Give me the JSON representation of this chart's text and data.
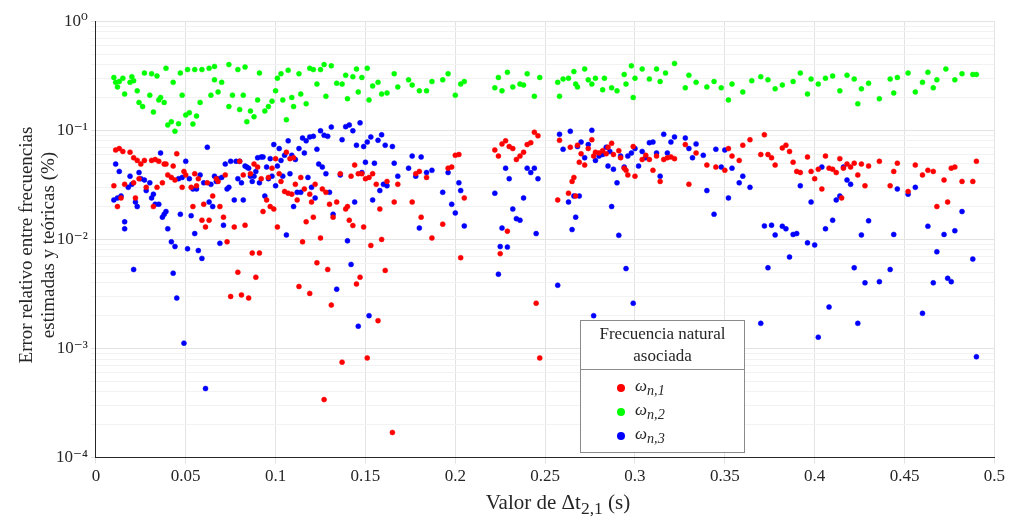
{
  "chart_data": {
    "type": "scatter",
    "xlabel": "Valor de Δt$_{2,1}$ (s)",
    "ylabel": "Error relativo entre frecuencias estimadas y teóricas (%)",
    "legend_title": "Frecuencia natural asociada",
    "legend": "bottom right",
    "grid": true,
    "log": "y",
    "marker": "circle",
    "xlim": [
      0,
      0.5
    ],
    "xticks": [
      0,
      0.05,
      0.1,
      0.15,
      0.2,
      0.25,
      0.3,
      0.35,
      0.4,
      0.45,
      0.5
    ],
    "ylim": [
      0.0001,
      1
    ],
    "yticks": [
      {
        "value": 0.0001,
        "label": "10⁻⁴"
      },
      {
        "value": 0.0002,
        "label": null
      },
      {
        "value": 0.0003,
        "label": null
      },
      {
        "value": 0.0004,
        "label": null
      },
      {
        "value": 0.0005,
        "label": null
      },
      {
        "value": 0.0006,
        "label": null
      },
      {
        "value": 0.0007,
        "label": null
      },
      {
        "value": 0.0008,
        "label": null
      },
      {
        "value": 0.0009,
        "label": null
      },
      {
        "value": 0.001,
        "label": "10⁻³"
      },
      {
        "value": 0.002,
        "label": null
      },
      {
        "value": 0.003,
        "label": null
      },
      {
        "value": 0.004,
        "label": null
      },
      {
        "value": 0.005,
        "label": null
      },
      {
        "value": 0.006,
        "label": null
      },
      {
        "value": 0.007,
        "label": null
      },
      {
        "value": 0.008,
        "label": null
      },
      {
        "value": 0.009,
        "label": null
      },
      {
        "value": 0.01,
        "label": "10⁻²"
      },
      {
        "value": 0.02,
        "label": null
      },
      {
        "value": 0.03,
        "label": null
      },
      {
        "value": 0.04,
        "label": null
      },
      {
        "value": 0.05,
        "label": null
      },
      {
        "value": 0.06,
        "label": null
      },
      {
        "value": 0.07,
        "label": null
      },
      {
        "value": 0.08,
        "label": null
      },
      {
        "value": 0.09,
        "label": null
      },
      {
        "value": 0.1,
        "label": "10⁻¹"
      },
      {
        "value": 0.2,
        "label": null
      },
      {
        "value": 0.3,
        "label": null
      },
      {
        "value": 0.4,
        "label": null
      },
      {
        "value": 0.5,
        "label": null
      },
      {
        "value": 0.6,
        "label": null
      },
      {
        "value": 0.7,
        "label": null
      },
      {
        "value": 0.8,
        "label": null
      },
      {
        "value": 0.9,
        "label": null
      },
      {
        "value": 1,
        "label": "10⁰"
      }
    ],
    "series": [
      {
        "name": "ω$_{n,1}$",
        "color": "#ff0000",
        "x": [
          0.01,
          0.011,
          0.012,
          0.013,
          0.014,
          0.015,
          0.016,
          0.019,
          0.021,
          0.021,
          0.022,
          0.023,
          0.024,
          0.025,
          0.027,
          0.028,
          0.031,
          0.032,
          0.033,
          0.034,
          0.035,
          0.037,
          0.038,
          0.039,
          0.04,
          0.042,
          0.043,
          0.044,
          0.045,
          0.048,
          0.049,
          0.05,
          0.053,
          0.054,
          0.055,
          0.056,
          0.057,
          0.059,
          0.06,
          0.061,
          0.062,
          0.063,
          0.065,
          0.067,
          0.068,
          0.069,
          0.071,
          0.072,
          0.073,
          0.075,
          0.077,
          0.079,
          0.08,
          0.081,
          0.082,
          0.083,
          0.085,
          0.086,
          0.087,
          0.088,
          0.089,
          0.09,
          0.091,
          0.092,
          0.093,
          0.095,
          0.096,
          0.097,
          0.098,
          0.099,
          0.1,
          0.101,
          0.102,
          0.103,
          0.105,
          0.106,
          0.107,
          0.108,
          0.109,
          0.11,
          0.111,
          0.112,
          0.113,
          0.114,
          0.115,
          0.116,
          0.117,
          0.119,
          0.119,
          0.12,
          0.121,
          0.122,
          0.123,
          0.125,
          0.126,
          0.127,
          0.128,
          0.129,
          0.13,
          0.131,
          0.132,
          0.134,
          0.136,
          0.137,
          0.139,
          0.14,
          0.141,
          0.142,
          0.143,
          0.144,
          0.145,
          0.146,
          0.147,
          0.148,
          0.149,
          0.15,
          0.151,
          0.152,
          0.153,
          0.154,
          0.156,
          0.157,
          0.158,
          0.159,
          0.161,
          0.162,
          0.165,
          0.166,
          0.168,
          0.176,
          0.178,
          0.18,
          0.181,
          0.184,
          0.187,
          0.193,
          0.196,
          0.198,
          0.2,
          0.202,
          0.203,
          0.205,
          0.222,
          0.224,
          0.225,
          0.226,
          0.228,
          0.229,
          0.23,
          0.232,
          0.234,
          0.236,
          0.238,
          0.24,
          0.242,
          0.244,
          0.245,
          0.246,
          0.247,
          0.257,
          0.258,
          0.263,
          0.264,
          0.265,
          0.266,
          0.267,
          0.268,
          0.269,
          0.27,
          0.272,
          0.274,
          0.276,
          0.277,
          0.278,
          0.28,
          0.282,
          0.284,
          0.285,
          0.287,
          0.288,
          0.291,
          0.292,
          0.294,
          0.295,
          0.296,
          0.299,
          0.3,
          0.304,
          0.306,
          0.308,
          0.31,
          0.312,
          0.314,
          0.316,
          0.318,
          0.32,
          0.322,
          0.328,
          0.33,
          0.334,
          0.34,
          0.345,
          0.35,
          0.352,
          0.354,
          0.358,
          0.36,
          0.364,
          0.37,
          0.372,
          0.374,
          0.376,
          0.378,
          0.382,
          0.384,
          0.386,
          0.388,
          0.39,
          0.392,
          0.396,
          0.398,
          0.4,
          0.402,
          0.404,
          0.406,
          0.408,
          0.41,
          0.412,
          0.414,
          0.415,
          0.416,
          0.418,
          0.42,
          0.422,
          0.424,
          0.426,
          0.428,
          0.43,
          0.436,
          0.442,
          0.444,
          0.446,
          0.452,
          0.456,
          0.46,
          0.463,
          0.466,
          0.468,
          0.472,
          0.474,
          0.476,
          0.478,
          0.482,
          0.488,
          0.49
        ],
        "values": [
          0.031,
          0.066,
          0.02,
          0.068,
          0.024,
          0.064,
          0.032,
          0.063,
          0.033,
          0.056,
          0.024,
          0.053,
          0.036,
          0.049,
          0.053,
          0.03,
          0.053,
          0.02,
          0.054,
          0.03,
          0.052,
          0.033,
          0.049,
          0.049,
          0.039,
          0.037,
          0.047,
          0.035,
          0.061,
          0.03,
          0.042,
          0.039,
          0.03,
          0.02,
          0.04,
          0.031,
          0.036,
          0.015,
          0.021,
          0.013,
          0.033,
          0.015,
          0.025,
          0.036,
          0.034,
          0.02,
          0.016,
          0.039,
          0.0095,
          0.003,
          0.013,
          0.005,
          0.052,
          0.0031,
          0.039,
          0.0135,
          0.0029,
          0.04,
          0.0075,
          0.049,
          0.0045,
          0.046,
          0.0075,
          0.036,
          0.018,
          0.023,
          0.037,
          0.02,
          0.045,
          0.019,
          0.055,
          0.013,
          0.04,
          0.034,
          0.0275,
          0.063,
          0.0265,
          0.055,
          0.026,
          0.056,
          0.032,
          0.023,
          0.0037,
          0.037,
          0.0095,
          0.029,
          0.0145,
          0.026,
          0.0032,
          0.022,
          0.016,
          0.032,
          0.0061,
          0.0103,
          0.029,
          0.00034,
          0.027,
          0.0053,
          0.021,
          0.0025,
          0.016,
          0.022,
          0.04,
          0.00075,
          0.019,
          0.02,
          0.015,
          0.038,
          0.0134,
          0.048,
          0.0039,
          0.04,
          0.0045,
          0.04,
          0.013,
          0.036,
          0.00082,
          0.037,
          0.0088,
          0.04,
          0.032,
          0.0018,
          0.019,
          0.01,
          0.0052,
          0.034,
          0.00017,
          0.022,
          0.032,
          0.022,
          0.04,
          0.042,
          0.016,
          0.037,
          0.0103,
          0.0138,
          0.045,
          0.046,
          0.059,
          0.06,
          0.0068,
          0.024,
          0.066,
          0.058,
          0.0074,
          0.075,
          0.08,
          0.0119,
          0.071,
          0.068,
          0.054,
          0.058,
          0.063,
          0.074,
          0.077,
          0.096,
          0.0026,
          0.089,
          0.00082,
          0.023,
          0.081,
          0.0265,
          0.07,
          0.034,
          0.037,
          0.025,
          0.073,
          0.051,
          0.061,
          0.048,
          0.068,
          0.082,
          0.058,
          0.063,
          0.062,
          0.065,
          0.061,
          0.07,
          0.076,
          0.06,
          0.065,
          0.056,
          0.045,
          0.043,
          0.039,
          0.071,
          0.038,
          0.054,
          0.059,
          0.054,
          0.043,
          0.058,
          0.034,
          0.054,
          0.056,
          0.057,
          0.055,
          0.074,
          0.032,
          0.062,
          0.048,
          0.046,
          0.043,
          0.068,
          0.058,
          0.053,
          0.073,
          0.082,
          0.06,
          0.091,
          0.06,
          0.056,
          0.048,
          0.069,
          0.073,
          0.064,
          0.051,
          0.042,
          0.041,
          0.057,
          0.042,
          0.036,
          0.044,
          0.029,
          0.058,
          0.045,
          0.044,
          0.041,
          0.055,
          0.024,
          0.045,
          0.049,
          0.046,
          0.05,
          0.039,
          0.049,
          0.031,
          0.047,
          0.052,
          0.031,
          0.042,
          0.05,
          0.0275,
          0.048,
          0.039,
          0.043,
          0.042,
          0.02,
          0.035,
          0.022,
          0.045,
          0.046,
          0.034,
          0.034,
          0.052
        ]
      },
      {
        "name": "ω$_{n,2}$",
        "color": "#00ff00",
        "x": [
          0.01,
          0.011,
          0.012,
          0.013,
          0.015,
          0.016,
          0.019,
          0.02,
          0.021,
          0.023,
          0.024,
          0.026,
          0.027,
          0.03,
          0.032,
          0.031,
          0.034,
          0.035,
          0.036,
          0.038,
          0.039,
          0.04,
          0.042,
          0.044,
          0.043,
          0.046,
          0.047,
          0.048,
          0.05,
          0.052,
          0.054,
          0.056,
          0.051,
          0.055,
          0.058,
          0.059,
          0.063,
          0.066,
          0.066,
          0.064,
          0.068,
          0.07,
          0.074,
          0.074,
          0.076,
          0.079,
          0.08,
          0.082,
          0.083,
          0.084,
          0.086,
          0.088,
          0.09,
          0.091,
          0.094,
          0.096,
          0.098,
          0.1,
          0.101,
          0.103,
          0.104,
          0.106,
          0.107,
          0.109,
          0.11,
          0.113,
          0.114,
          0.117,
          0.119,
          0.121,
          0.123,
          0.125,
          0.127,
          0.128,
          0.131,
          0.134,
          0.137,
          0.139,
          0.14,
          0.143,
          0.145,
          0.146,
          0.148,
          0.151,
          0.152,
          0.154,
          0.157,
          0.159,
          0.162,
          0.166,
          0.168,
          0.174,
          0.176,
          0.18,
          0.184,
          0.187,
          0.193,
          0.196,
          0.2,
          0.203,
          0.205,
          0.222,
          0.224,
          0.226,
          0.229,
          0.232,
          0.236,
          0.238,
          0.24,
          0.244,
          0.247,
          0.257,
          0.258,
          0.26,
          0.263,
          0.266,
          0.267,
          0.268,
          0.272,
          0.274,
          0.276,
          0.278,
          0.282,
          0.283,
          0.287,
          0.29,
          0.294,
          0.295,
          0.298,
          0.299,
          0.3,
          0.304,
          0.308,
          0.312,
          0.314,
          0.317,
          0.322,
          0.328,
          0.33,
          0.334,
          0.34,
          0.344,
          0.348,
          0.352,
          0.354,
          0.36,
          0.365,
          0.37,
          0.374,
          0.378,
          0.382,
          0.388,
          0.392,
          0.396,
          0.398,
          0.402,
          0.406,
          0.41,
          0.414,
          0.418,
          0.422,
          0.424,
          0.426,
          0.43,
          0.436,
          0.442,
          0.444,
          0.446,
          0.452,
          0.456,
          0.46,
          0.463,
          0.466,
          0.468,
          0.473,
          0.478,
          0.482,
          0.488,
          0.49
        ],
        "values": [
          0.305,
          0.275,
          0.25,
          0.28,
          0.3,
          0.215,
          0.275,
          0.31,
          0.285,
          0.23,
          0.18,
          0.165,
          0.335,
          0.21,
          0.147,
          0.33,
          0.315,
          0.19,
          0.2,
          0.18,
          0.37,
          0.112,
          0.12,
          0.098,
          0.275,
          0.115,
          0.335,
          0.21,
          0.138,
          0.145,
          0.114,
          0.135,
          0.36,
          0.36,
          0.18,
          0.36,
          0.37,
          0.385,
          0.29,
          0.21,
          0.225,
          0.275,
          0.4,
          0.165,
          0.21,
          0.36,
          0.155,
          0.21,
          0.38,
          0.12,
          0.15,
          0.133,
          0.19,
          0.335,
          0.15,
          0.165,
          0.185,
          0.23,
          0.3,
          0.33,
          0.19,
          0.125,
          0.355,
          0.2,
          0.165,
          0.33,
          0.215,
          0.175,
          0.37,
          0.36,
          0.265,
          0.36,
          0.4,
          0.205,
          0.39,
          0.27,
          0.265,
          0.32,
          0.195,
          0.31,
          0.365,
          0.225,
          0.305,
          0.37,
          0.19,
          0.255,
          0.275,
          0.215,
          0.22,
          0.33,
          0.25,
          0.29,
          0.26,
          0.23,
          0.23,
          0.28,
          0.29,
          0.33,
          0.21,
          0.265,
          0.28,
          0.245,
          0.305,
          0.23,
          0.34,
          0.25,
          0.265,
          0.26,
          0.33,
          0.205,
          0.305,
          0.275,
          0.205,
          0.295,
          0.3,
          0.345,
          0.265,
          0.25,
          0.365,
          0.29,
          0.265,
          0.3,
          0.235,
          0.3,
          0.245,
          0.23,
          0.325,
          0.265,
          0.39,
          0.2,
          0.3,
          0.365,
          0.295,
          0.365,
          0.28,
          0.335,
          0.41,
          0.245,
          0.32,
          0.275,
          0.25,
          0.28,
          0.245,
          0.19,
          0.265,
          0.225,
          0.285,
          0.31,
          0.29,
          0.24,
          0.26,
          0.28,
          0.335,
          0.215,
          0.295,
          0.265,
          0.3,
          0.315,
          0.23,
          0.32,
          0.295,
          0.175,
          0.24,
          0.27,
          0.195,
          0.295,
          0.22,
          0.305,
          0.335,
          0.225,
          0.275,
          0.34,
          0.245,
          0.29,
          0.365,
          0.29,
          0.33,
          0.325,
          0.325
        ]
      },
      {
        "name": "ω$_{n,3}$",
        "color": "#0000ff",
        "x": [
          0.01,
          0.011,
          0.012,
          0.013,
          0.014,
          0.016,
          0.016,
          0.018,
          0.019,
          0.02,
          0.021,
          0.022,
          0.023,
          0.024,
          0.025,
          0.027,
          0.028,
          0.03,
          0.031,
          0.032,
          0.033,
          0.034,
          0.035,
          0.036,
          0.037,
          0.038,
          0.039,
          0.04,
          0.042,
          0.043,
          0.044,
          0.045,
          0.046,
          0.047,
          0.048,
          0.049,
          0.05,
          0.051,
          0.052,
          0.053,
          0.054,
          0.055,
          0.056,
          0.057,
          0.058,
          0.059,
          0.06,
          0.061,
          0.062,
          0.063,
          0.064,
          0.065,
          0.066,
          0.067,
          0.068,
          0.069,
          0.07,
          0.071,
          0.072,
          0.073,
          0.074,
          0.075,
          0.077,
          0.078,
          0.079,
          0.08,
          0.081,
          0.082,
          0.083,
          0.084,
          0.085,
          0.086,
          0.087,
          0.088,
          0.089,
          0.09,
          0.091,
          0.092,
          0.093,
          0.094,
          0.095,
          0.096,
          0.097,
          0.098,
          0.099,
          0.1,
          0.101,
          0.102,
          0.103,
          0.104,
          0.105,
          0.106,
          0.107,
          0.108,
          0.109,
          0.11,
          0.111,
          0.112,
          0.113,
          0.114,
          0.115,
          0.116,
          0.117,
          0.118,
          0.119,
          0.12,
          0.121,
          0.122,
          0.123,
          0.124,
          0.125,
          0.126,
          0.127,
          0.128,
          0.129,
          0.13,
          0.131,
          0.132,
          0.134,
          0.136,
          0.137,
          0.139,
          0.14,
          0.141,
          0.142,
          0.143,
          0.144,
          0.145,
          0.146,
          0.147,
          0.148,
          0.149,
          0.15,
          0.151,
          0.152,
          0.153,
          0.154,
          0.155,
          0.157,
          0.158,
          0.159,
          0.16,
          0.161,
          0.162,
          0.165,
          0.166,
          0.168,
          0.174,
          0.176,
          0.178,
          0.18,
          0.181,
          0.184,
          0.187,
          0.193,
          0.196,
          0.198,
          0.2,
          0.202,
          0.203,
          0.205,
          0.222,
          0.224,
          0.225,
          0.226,
          0.228,
          0.229,
          0.23,
          0.232,
          0.234,
          0.236,
          0.238,
          0.24,
          0.242,
          0.244,
          0.245,
          0.246,
          0.257,
          0.258,
          0.26,
          0.263,
          0.264,
          0.265,
          0.266,
          0.267,
          0.268,
          0.269,
          0.27,
          0.272,
          0.274,
          0.276,
          0.277,
          0.278,
          0.28,
          0.282,
          0.284,
          0.285,
          0.286,
          0.287,
          0.288,
          0.29,
          0.291,
          0.292,
          0.294,
          0.295,
          0.296,
          0.298,
          0.299,
          0.3,
          0.302,
          0.304,
          0.306,
          0.308,
          0.31,
          0.312,
          0.314,
          0.316,
          0.318,
          0.32,
          0.322,
          0.328,
          0.33,
          0.332,
          0.334,
          0.338,
          0.34,
          0.344,
          0.345,
          0.348,
          0.35,
          0.352,
          0.354,
          0.358,
          0.36,
          0.364,
          0.37,
          0.372,
          0.374,
          0.376,
          0.378,
          0.382,
          0.384,
          0.386,
          0.388,
          0.39,
          0.392,
          0.396,
          0.398,
          0.4,
          0.402,
          0.404,
          0.406,
          0.408,
          0.41,
          0.412,
          0.414,
          0.416,
          0.418,
          0.42,
          0.422,
          0.424,
          0.426,
          0.428,
          0.43,
          0.436,
          0.442,
          0.444,
          0.446,
          0.452,
          0.456,
          0.46,
          0.463,
          0.466,
          0.468,
          0.472,
          0.474,
          0.476,
          0.478,
          0.482,
          0.488,
          0.49
        ],
        "values": [
          0.023,
          0.049,
          0.024,
          0.042,
          0.025,
          0.0145,
          0.0125,
          0.03,
          0.038,
          0.032,
          0.0053,
          0.022,
          0.02,
          0.041,
          0.036,
          0.035,
          0.028,
          0.033,
          0.024,
          0.026,
          0.021,
          null,
          0.021,
          0.062,
          0.016,
          0.017,
          0.018,
          0.0125,
          0.0095,
          0.0049,
          0.0086,
          0.0029,
          0.036,
          0.017,
          0.037,
          0.00112,
          0.052,
          0.0082,
          0.036,
          0.0165,
          0.029,
          0.0113,
          0.029,
          0.0079,
          0.039,
          0.0067,
          0.033,
          0.00043,
          0.07,
          0.022,
          0.032,
          0.02,
          0.038,
          0.034,
          0.036,
          0.0092,
          0.037,
          0.0135,
          0.049,
          0.029,
          0.03,
          0.052,
          0.023,
          0.052,
          0.036,
          0.052,
          0.033,
          0.023,
          0.047,
          0.046,
          0.045,
          0.038,
          0.034,
          0.038,
          0.042,
          0.056,
          0.033,
          0.057,
          0.057,
          0.025,
          0.046,
          0.036,
          0.055,
          0.038,
          0.074,
          0.031,
          0.047,
          0.068,
          0.053,
          0.038,
          0.059,
          0.011,
          0.08,
          0.04,
          0.059,
          0.02,
          0.054,
          0.027,
          0.068,
          0.027,
          0.085,
          0.062,
          0.08,
          0.037,
          0.087,
          0.03,
          0.088,
          0.024,
          0.067,
          0.049,
          0.099,
          0.046,
          0.09,
          0.04,
          0.088,
          0.027,
          0.107,
          0.017,
          0.0035,
          0.039,
          0.082,
          0.108,
          0.0097,
          0.112,
          0.0059,
          0.099,
          0.022,
          0.073,
          0.0016,
          0.117,
          0.041,
          0.071,
          0.051,
          0.078,
          0.002,
          0.087,
          0.023,
          0.05,
          0.081,
          0.028,
          0.091,
          0.032,
          0.073,
          0.031,
          0.071,
          0.05,
          0.038,
          0.045,
          0.058,
          0.038,
          0.0127,
          0.057,
          0.041,
          0.043,
          0.027,
          0.041,
          0.021,
          0.0175,
          0.033,
          0.028,
          0.0133,
          0.0265,
          0.0048,
          0.0086,
          0.0127,
          0.045,
          0.0085,
          0.036,
          0.019,
          0.0155,
          0.015,
          0.024,
          0.045,
          0.041,
          0.045,
          0.0113,
          0.036,
          0.0038,
          0.092,
          0.067,
          0.022,
          0.098,
          0.0123,
          0.025,
          0.016,
          0.071,
          0.025,
          0.078,
          0.056,
          0.074,
          0.1,
          0.002,
          0.053,
          0.058,
          0.06,
          0.07,
          0.047,
          0.064,
          0.02,
          0.044,
          0.033,
          0.0109,
          0.058,
          0.046,
          0.0054,
          0.058,
          0.062,
          0.0026,
          0.068,
          0.047,
          0.064,
          0.056,
          0.077,
          0.078,
          0.062,
          0.038,
          0.092,
          0.062,
          0.078,
          0.087,
          0.085,
          0.068,
          0.056,
          0.075,
          0.059,
          0.028,
          0.017,
          0.067,
          0.046,
          0.066,
          0.024,
          0.045,
          0.033,
          0.038,
          0.03,
          0.0017,
          0.0133,
          0.0055,
          0.0135,
          0.011,
          0.0132,
          0.0125,
          0.0069,
          0.0111,
          0.0113,
          0.031,
          0.0093,
          0.022,
          0.0089,
          0.00127,
          0.046,
          0.0125,
          0.0024,
          0.015,
          0.023,
          0.025,
          0.046,
          0.035,
          0.032,
          0.0055,
          0.0017,
          0.011,
          0.004,
          0.0148,
          0.0041,
          0.0053,
          0.0111,
          0.029,
          0.026,
          0.03,
          0.0021,
          0.0132,
          0.004,
          0.0077,
          0.0111,
          0.0044,
          0.0041,
          0.012,
          0.018,
          0.0066,
          0.00084
        ]
      }
    ]
  }
}
